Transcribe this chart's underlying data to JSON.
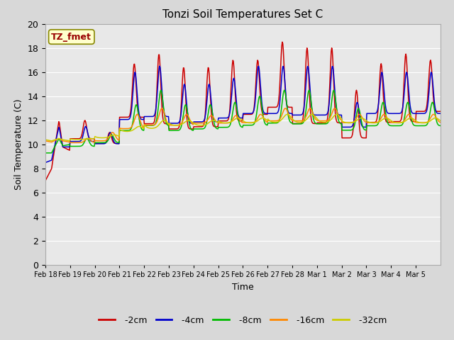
{
  "title": "Tonzi Soil Temperatures Set C",
  "xlabel": "Time",
  "ylabel": "Soil Temperature (C)",
  "ylim": [
    0,
    20
  ],
  "yticks": [
    0,
    2,
    4,
    6,
    8,
    10,
    12,
    14,
    16,
    18,
    20
  ],
  "bg_color": "#e8e8e8",
  "colors": {
    "-2cm": "#cc0000",
    "-4cm": "#0000cc",
    "-8cm": "#00bb00",
    "-16cm": "#ff8800",
    "-32cm": "#cccc00"
  },
  "line_width": 1.1,
  "legend_label": "TZ_fmet",
  "xtick_labels": [
    "Feb 18",
    "Feb 19",
    "Feb 20",
    "Feb 21",
    "Feb 22",
    "Feb 23",
    "Feb 24",
    "Feb 25",
    "Feb 26",
    "Feb 27",
    "Feb 28",
    "Mar 1",
    "Mar 2",
    "Mar 3",
    "Mar 4",
    "Mar 5"
  ],
  "n_days": 16,
  "pts_per_day": 48
}
